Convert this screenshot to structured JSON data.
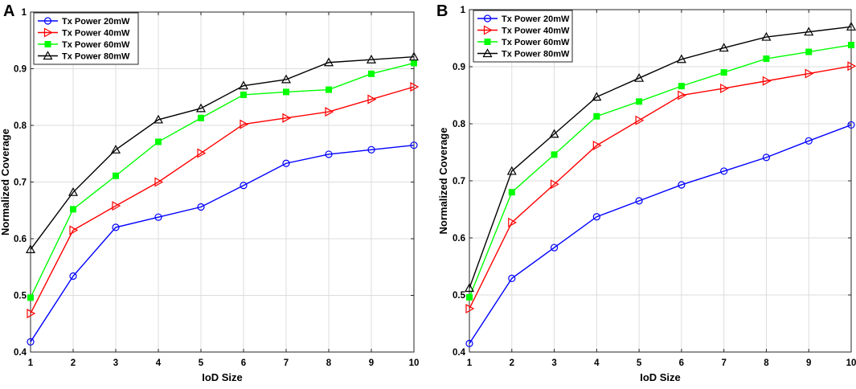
{
  "chart_data": [
    {
      "type": "line",
      "panel_label": "A",
      "xlabel": "IoD Size",
      "ylabel": "Normalized Coverage",
      "xlim": [
        1,
        10
      ],
      "ylim": [
        0.4,
        1
      ],
      "x": [
        1,
        2,
        3,
        4,
        5,
        6,
        7,
        8,
        9,
        10
      ],
      "x_ticks": [
        "1",
        "2",
        "3",
        "4",
        "5",
        "6",
        "7",
        "8",
        "9",
        "10"
      ],
      "y_ticks": [
        {
          "value": 0.4,
          "label": "0.4"
        },
        {
          "value": 0.5,
          "label": "0.5"
        },
        {
          "value": 0.6,
          "label": "0.6"
        },
        {
          "value": 0.7,
          "label": "0.7"
        },
        {
          "value": 0.8,
          "label": "0.8"
        },
        {
          "value": 0.9,
          "label": "0.9"
        },
        {
          "value": 1.0,
          "label": "1"
        }
      ],
      "grid": true,
      "legend_position": "top-left",
      "series": [
        {
          "name": "Tx Power 20mW",
          "color": "#0000ff",
          "marker": "circle",
          "values": [
            0.418,
            0.534,
            0.62,
            0.638,
            0.656,
            0.694,
            0.733,
            0.749,
            0.757,
            0.765
          ]
        },
        {
          "name": "Tx Power 40mW",
          "color": "#ff0000",
          "marker": "triangle-right",
          "values": [
            0.468,
            0.615,
            0.658,
            0.7,
            0.751,
            0.802,
            0.813,
            0.824,
            0.846,
            0.868
          ]
        },
        {
          "name": "Tx Power 60mW",
          "color": "#00ff00",
          "marker": "square",
          "values": [
            0.496,
            0.652,
            0.711,
            0.771,
            0.813,
            0.854,
            0.859,
            0.863,
            0.891,
            0.91
          ]
        },
        {
          "name": "Tx Power 80mW",
          "color": "#000000",
          "marker": "triangle-up",
          "values": [
            0.581,
            0.682,
            0.757,
            0.81,
            0.83,
            0.87,
            0.881,
            0.911,
            0.916,
            0.921
          ]
        }
      ]
    },
    {
      "type": "line",
      "panel_label": "B",
      "xlabel": "IoD Size",
      "ylabel": "Normalized Coverage",
      "xlim": [
        1,
        10
      ],
      "ylim": [
        0.4,
        1
      ],
      "x": [
        1,
        2,
        3,
        4,
        5,
        6,
        7,
        8,
        9,
        10
      ],
      "x_ticks": [
        "1",
        "2",
        "3",
        "4",
        "5",
        "6",
        "7",
        "8",
        "9",
        "10"
      ],
      "y_ticks": [
        {
          "value": 0.4,
          "label": "0.4"
        },
        {
          "value": 0.5,
          "label": "0.5"
        },
        {
          "value": 0.6,
          "label": "0.6"
        },
        {
          "value": 0.7,
          "label": "0.7"
        },
        {
          "value": 0.8,
          "label": "0.8"
        },
        {
          "value": 0.9,
          "label": "0.9"
        },
        {
          "value": 1.0,
          "label": "1"
        }
      ],
      "grid": true,
      "legend_position": "top-left",
      "series": [
        {
          "name": "Tx Power 20mW",
          "color": "#0000ff",
          "marker": "circle",
          "values": [
            0.415,
            0.529,
            0.583,
            0.637,
            0.665,
            0.693,
            0.717,
            0.741,
            0.77,
            0.798
          ]
        },
        {
          "name": "Tx Power 40mW",
          "color": "#ff0000",
          "marker": "triangle-right",
          "values": [
            0.476,
            0.627,
            0.694,
            0.762,
            0.806,
            0.85,
            0.862,
            0.875,
            0.888,
            0.901
          ]
        },
        {
          "name": "Tx Power 60mW",
          "color": "#00ff00",
          "marker": "square",
          "values": [
            0.496,
            0.68,
            0.746,
            0.813,
            0.839,
            0.866,
            0.89,
            0.914,
            0.926,
            0.938
          ]
        },
        {
          "name": "Tx Power 80mW",
          "color": "#000000",
          "marker": "triangle-up",
          "values": [
            0.512,
            0.717,
            0.782,
            0.847,
            0.88,
            0.913,
            0.933,
            0.952,
            0.961,
            0.97
          ]
        }
      ]
    }
  ]
}
